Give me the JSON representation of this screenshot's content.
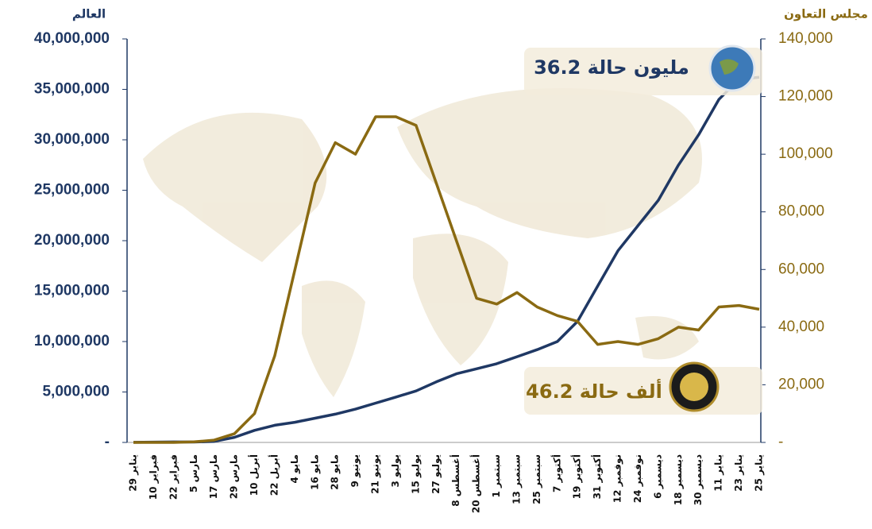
{
  "chart_data": {
    "type": "line",
    "y_label": "العالم",
    "y2_label": "مجلس التعاون",
    "annotations": [
      "36.2 مليون حالة",
      "46.2 ألف حالة"
    ],
    "categories": [
      "29 يناير",
      "10 فبراير",
      "22 فبراير",
      "5 مارس",
      "17 مارس",
      "29 مارس",
      "10 أبريل",
      "22 أبريل",
      "4 مايو",
      "16 مايو",
      "28 مايو",
      "9 يونيو",
      "21 يونيو",
      "3 يوليو",
      "15 يوليو",
      "27 يوليو",
      "8 أغسطس",
      "20 أغسطس",
      "1 سبتمبر",
      "13 سبتمبر",
      "25 سبتمبر",
      "7 أكتوبر",
      "19 أكتوبر",
      "31 أكتوبر",
      "12 نوفمبر",
      "24 نوفمبر",
      "6 ديسمبر",
      "18 ديسمبر",
      "30 ديسمبر",
      "11 يناير",
      "23 يناير",
      "25 يناير"
    ],
    "series": [
      {
        "name": "العالم",
        "color": "#1f3864",
        "axis": "y",
        "values": [
          6000,
          30000,
          50000,
          40000,
          100000,
          500000,
          1200000,
          1700000,
          2000000,
          2400000,
          2800000,
          3300000,
          3900000,
          4500000,
          5100000,
          6000000,
          6800000,
          7300000,
          7800000,
          8500000,
          9200000,
          10000000,
          12000000,
          15500000,
          19000000,
          21500000,
          24000000,
          27500000,
          30500000,
          34000000,
          36000000,
          36200000
        ]
      },
      {
        "name": "مجلس التعاون",
        "color": "#8a6a12",
        "axis": "y2",
        "values": [
          0,
          0,
          0,
          200,
          800,
          3000,
          10000,
          30000,
          60000,
          90000,
          104000,
          100000,
          113000,
          113000,
          110000,
          90000,
          70000,
          50000,
          48000,
          52000,
          47000,
          44000,
          42000,
          34000,
          35000,
          34000,
          36000,
          40000,
          39000,
          47000,
          47500,
          46200
        ]
      }
    ],
    "ylim": [
      0,
      40000000
    ],
    "yticks": [
      {
        "value": 0,
        "label": "-"
      },
      {
        "value": 5000000,
        "label": "5,000,000"
      },
      {
        "value": 10000000,
        "label": "10,000,000"
      },
      {
        "value": 15000000,
        "label": "15,000,000"
      },
      {
        "value": 20000000,
        "label": "20,000,000"
      },
      {
        "value": 25000000,
        "label": "25,000,000"
      },
      {
        "value": 30000000,
        "label": "30,000,000"
      },
      {
        "value": 35000000,
        "label": "35,000,000"
      },
      {
        "value": 40000000,
        "label": "40,000,000"
      }
    ],
    "y2lim": [
      0,
      140000
    ],
    "y2ticks": [
      {
        "value": 0,
        "label": "-"
      },
      {
        "value": 20000,
        "label": "20,000"
      },
      {
        "value": 40000,
        "label": "40,000"
      },
      {
        "value": 60000,
        "label": "60,000"
      },
      {
        "value": 80000,
        "label": "80,000"
      },
      {
        "value": 100000,
        "label": "100,000"
      },
      {
        "value": 120000,
        "label": "120,000"
      },
      {
        "value": 140000,
        "label": "140,000"
      }
    ],
    "grid": false
  }
}
